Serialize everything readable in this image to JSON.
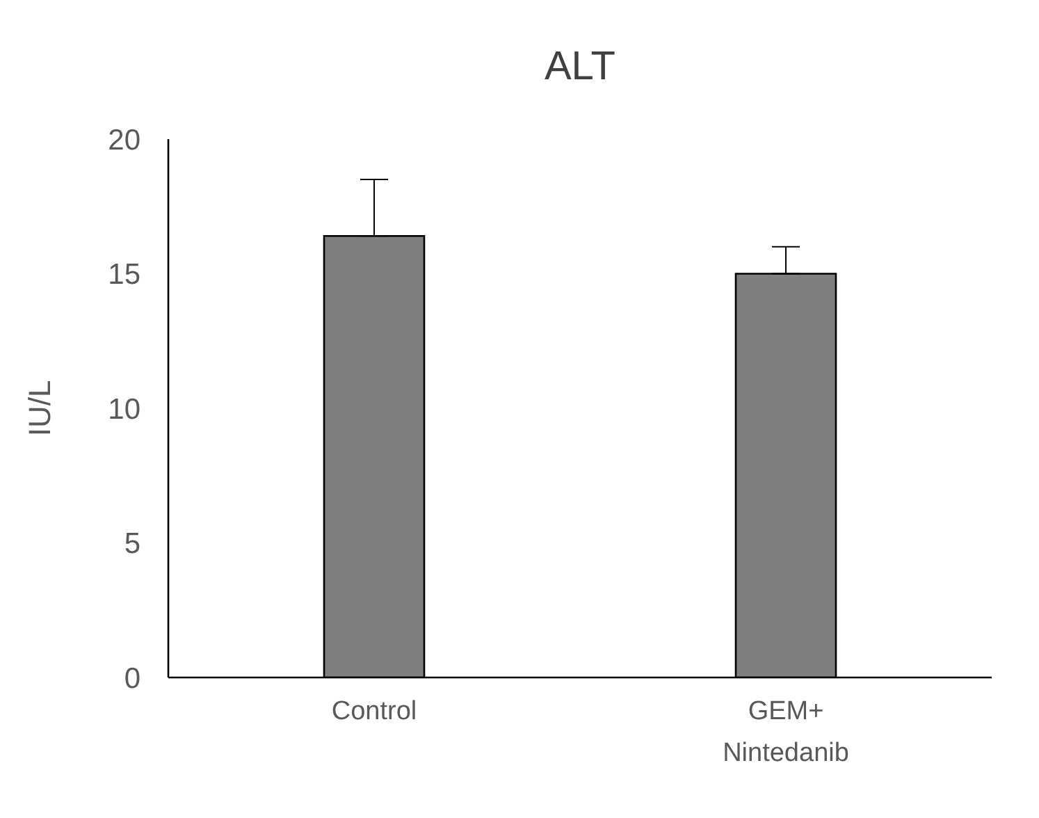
{
  "chart_data": {
    "type": "bar",
    "title": "ALT",
    "ylabel": "IU/L",
    "categories": [
      "Control",
      "GEM+ Nintedanib"
    ],
    "values": [
      16.4,
      15.0
    ],
    "errors": [
      [
        16.4,
        18.5
      ],
      [
        15.0,
        16.0
      ]
    ],
    "color": "#7f7f7f",
    "ylim": [
      0,
      20
    ],
    "yticks": [
      0,
      5,
      10,
      15,
      20
    ],
    "grid": false,
    "legend": false
  }
}
